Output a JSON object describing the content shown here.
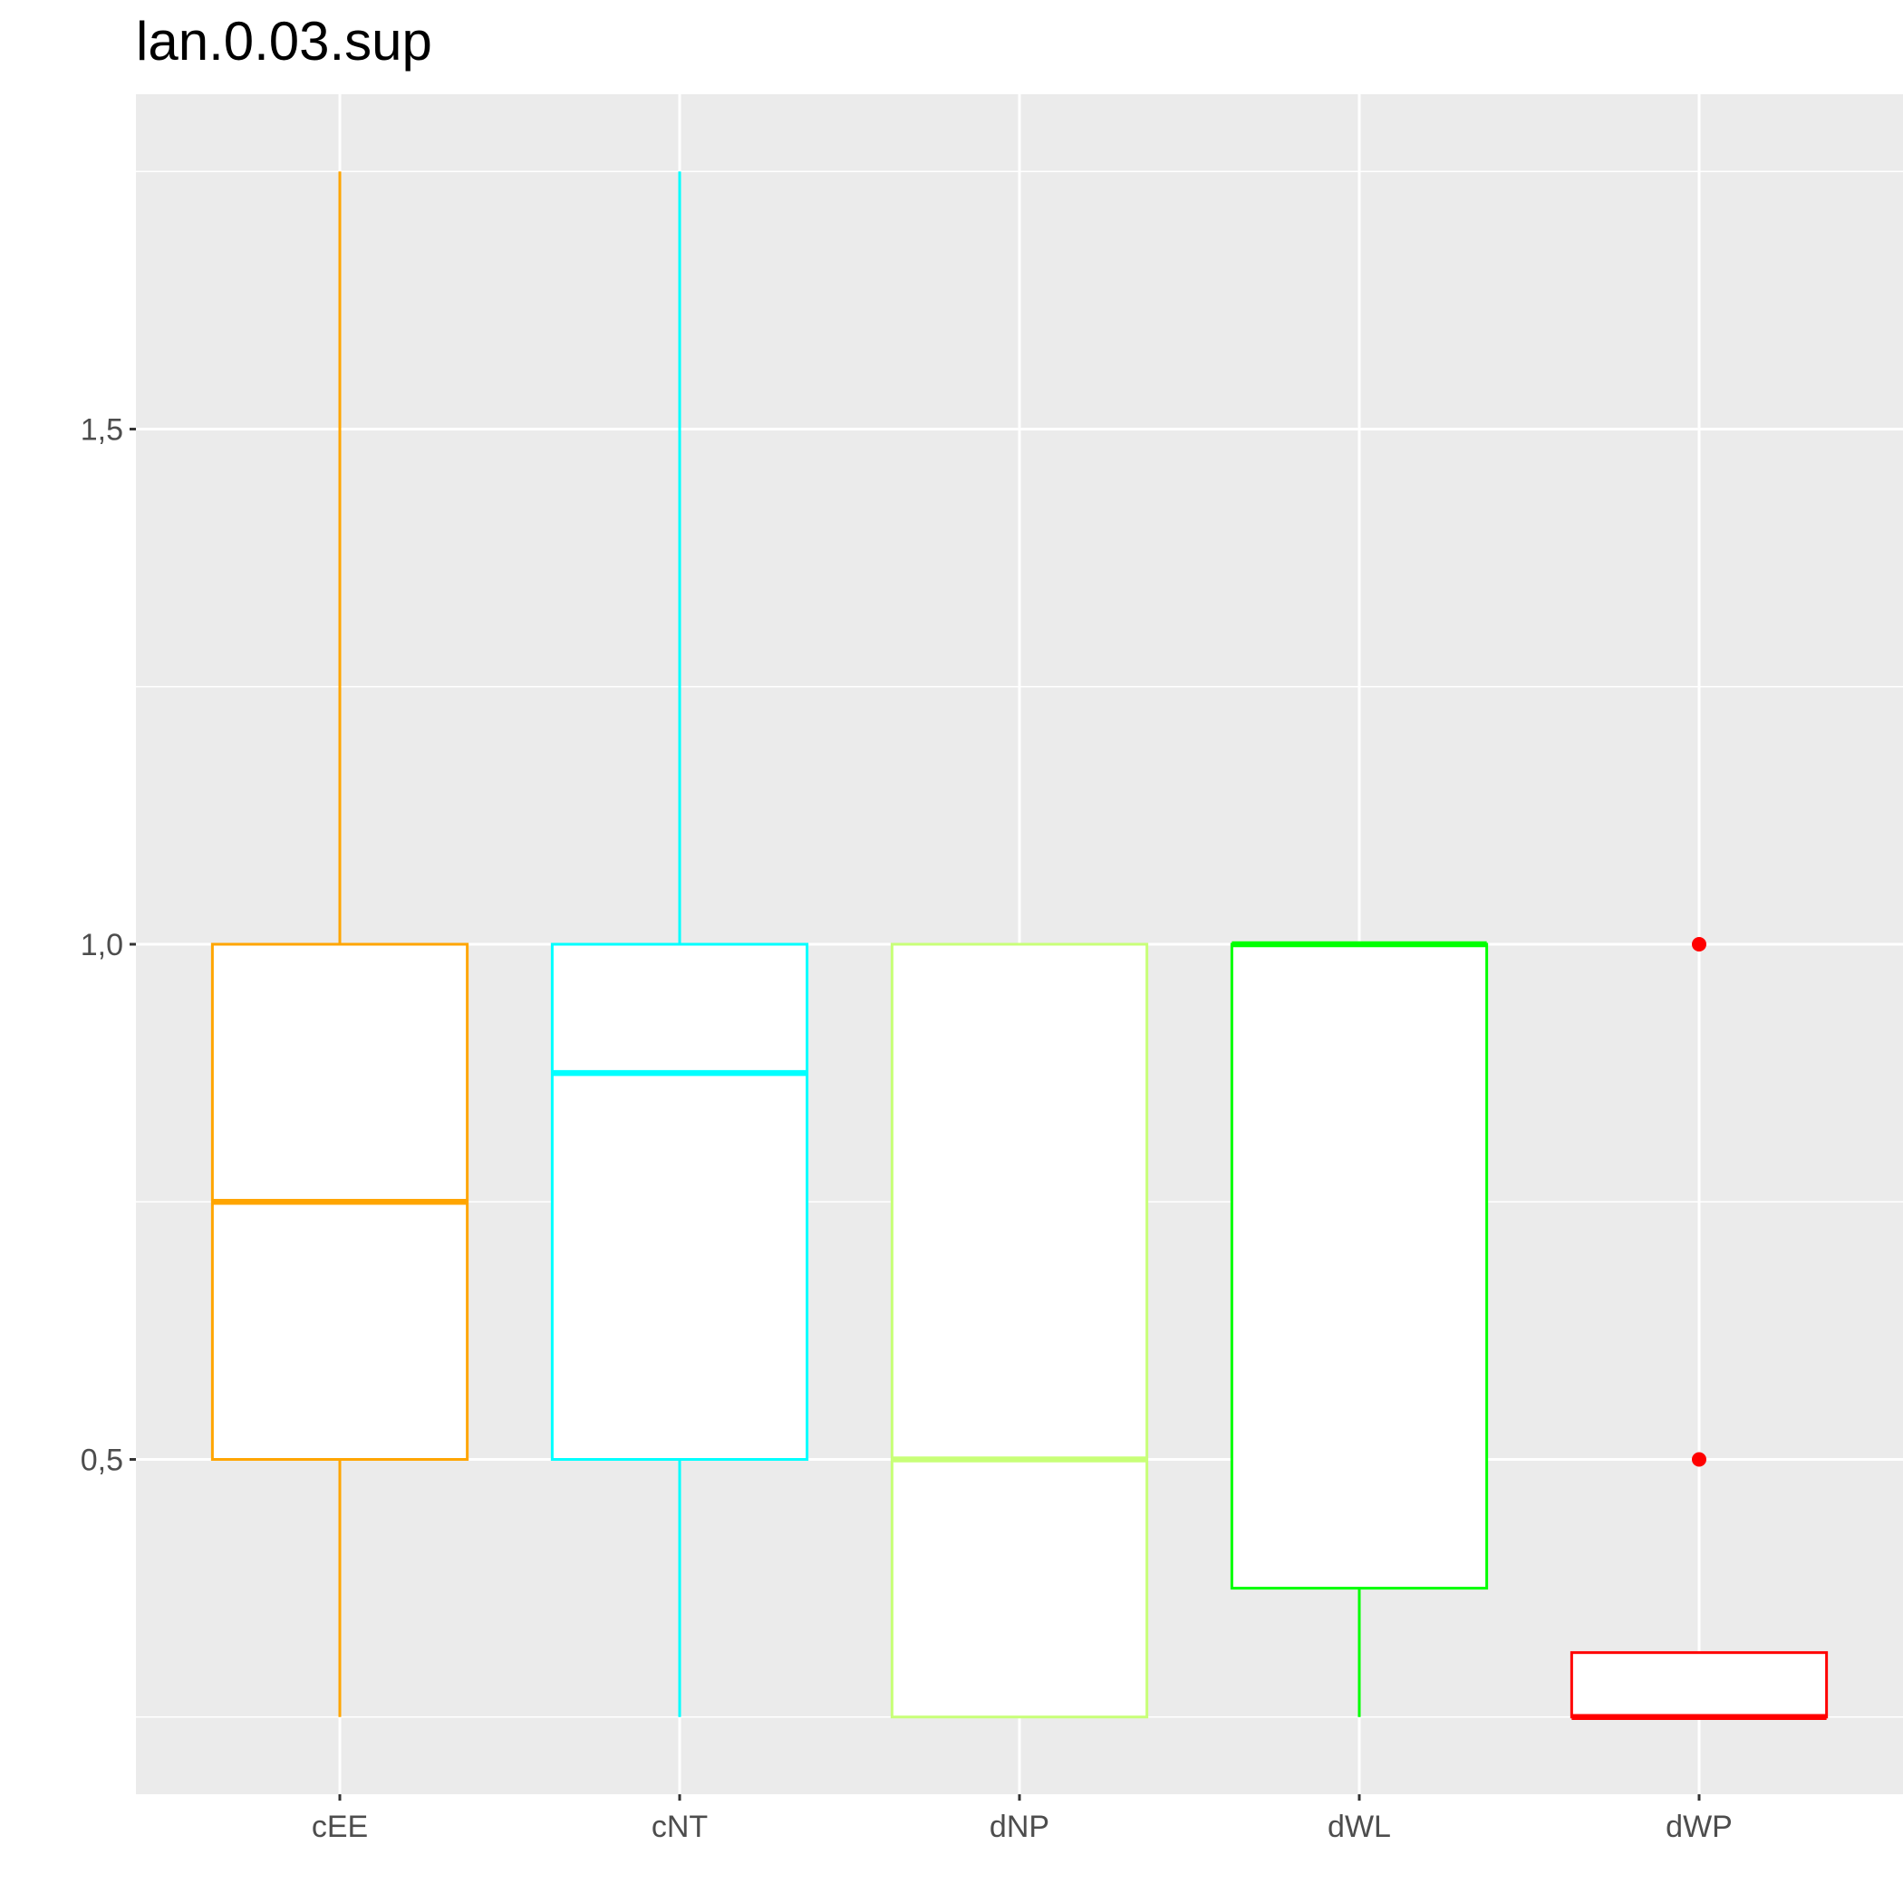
{
  "chart_data": {
    "type": "boxplot",
    "title": "lan.0.03.sup",
    "xlabel": "",
    "ylabel": "",
    "ylim": [
      0.175,
      1.825
    ],
    "y_ticks": [
      {
        "value": 0.5,
        "label": "0,5"
      },
      {
        "value": 1.0,
        "label": "1,0"
      },
      {
        "value": 1.5,
        "label": "1,5"
      }
    ],
    "y_minor_ticks": [
      0.25,
      0.75,
      1.25,
      1.75
    ],
    "grid": true,
    "legend": "none",
    "categories": [
      "cEE",
      "cNT",
      "dNP",
      "dWL",
      "dWP"
    ],
    "boxes": [
      {
        "category": "cEE",
        "min": 0.25,
        "q1": 0.5,
        "median": 0.75,
        "q3": 1.0,
        "max": 1.75,
        "outliers": [],
        "color": "#FFA500"
      },
      {
        "category": "cNT",
        "min": 0.25,
        "q1": 0.5,
        "median": 0.875,
        "q3": 1.0,
        "max": 1.75,
        "outliers": [],
        "color": "#00FFFF"
      },
      {
        "category": "dNP",
        "min": 0.25,
        "q1": 0.25,
        "median": 0.5,
        "q3": 1.0,
        "max": 1.0,
        "outliers": [],
        "color": "#C8FF78"
      },
      {
        "category": "dWL",
        "min": 0.25,
        "q1": 0.375,
        "median": 1.0,
        "q3": 1.0,
        "max": 1.0,
        "outliers": [],
        "color": "#00FF00"
      },
      {
        "category": "dWP",
        "min": 0.25,
        "q1": 0.25,
        "median": 0.25,
        "q3": 0.3125,
        "max": 0.3125,
        "outliers": [
          0.5,
          1.0
        ],
        "color": "#FF0000"
      }
    ],
    "colors": {
      "panel_background": "#EBEBEB",
      "grid": "#FFFFFF",
      "axis_text": "#4D4D4D",
      "tick": "#333333"
    }
  }
}
